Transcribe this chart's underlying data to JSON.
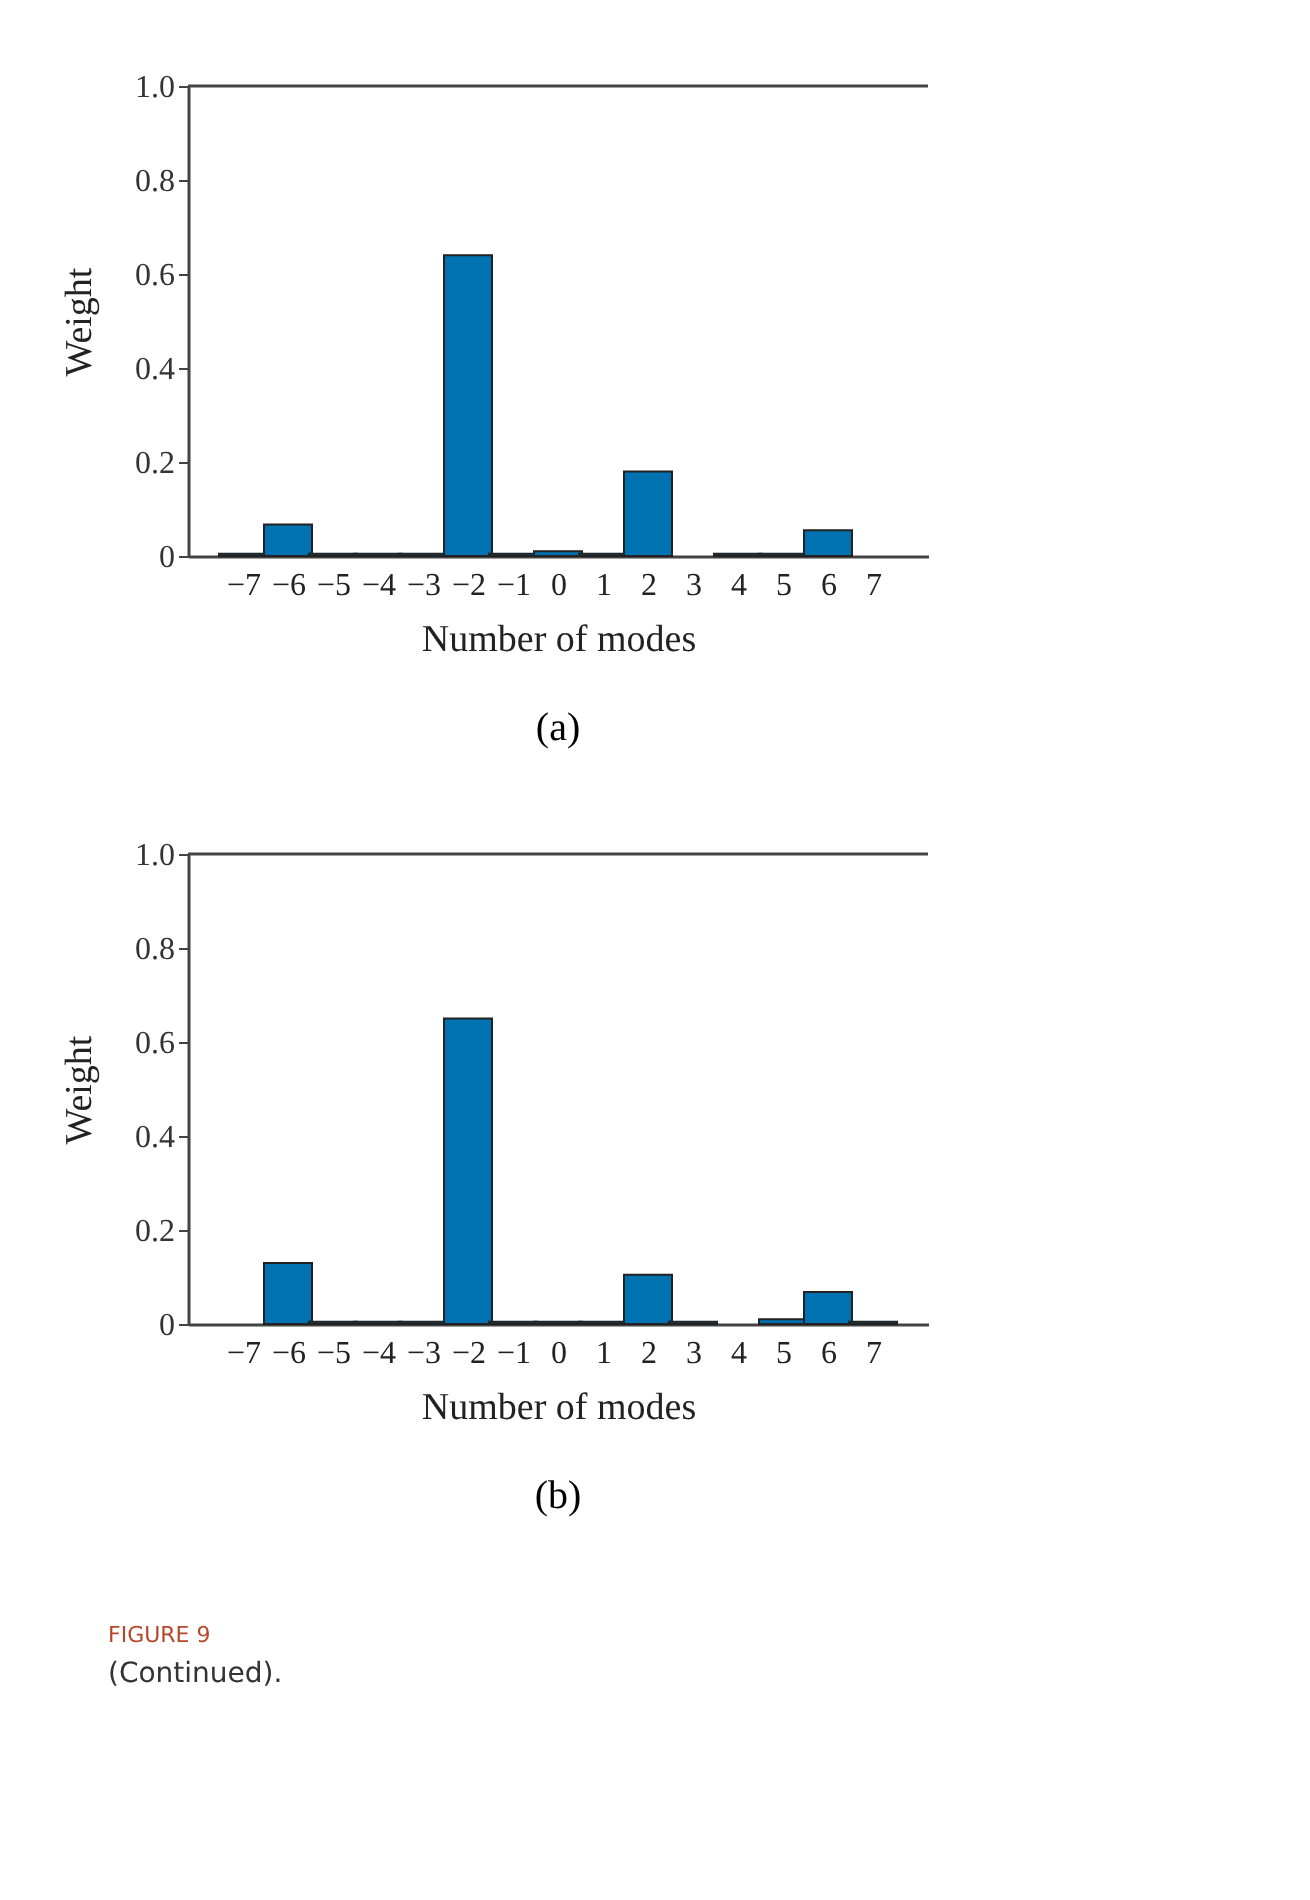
{
  "chart_data": [
    {
      "type": "bar",
      "title": "(a)",
      "xlabel": "Number of modes",
      "ylabel": "Weight",
      "categories": [
        "−7",
        "−6",
        "−5",
        "−4",
        "−3",
        "−2",
        "−1",
        "0",
        "1",
        "2",
        "3",
        "4",
        "5",
        "6",
        "7"
      ],
      "values": [
        0.005,
        0.067,
        0.005,
        0.005,
        0.005,
        0.64,
        0.005,
        0.01,
        0.005,
        0.18,
        0,
        0.005,
        0.005,
        0.055,
        0
      ],
      "color": "#0072b2",
      "ylim": [
        0,
        1
      ],
      "yticks": [
        0,
        0.2,
        0.4,
        0.6,
        0.8,
        {
          "value": 1,
          "label": "1.0"
        }
      ],
      "grid": false
    },
    {
      "type": "bar",
      "title": "(b)",
      "xlabel": "Number of modes",
      "ylabel": "Weight",
      "categories": [
        "−7",
        "−6",
        "−5",
        "−4",
        "−3",
        "−2",
        "−1",
        "0",
        "1",
        "2",
        "3",
        "4",
        "5",
        "6",
        "7"
      ],
      "values": [
        0,
        0.13,
        0.005,
        0.005,
        0.005,
        0.65,
        0.005,
        0.005,
        0.005,
        0.105,
        0.005,
        0,
        0.01,
        0.068,
        0.005
      ],
      "color": "#0072b2",
      "ylim": [
        0,
        1
      ],
      "yticks": [
        0,
        0.2,
        0.4,
        0.6,
        0.8,
        {
          "value": 1,
          "label": "1.0"
        }
      ],
      "grid": false,
      "annotations": [
        "FIGURE 9",
        "(Continued)."
      ]
    }
  ]
}
